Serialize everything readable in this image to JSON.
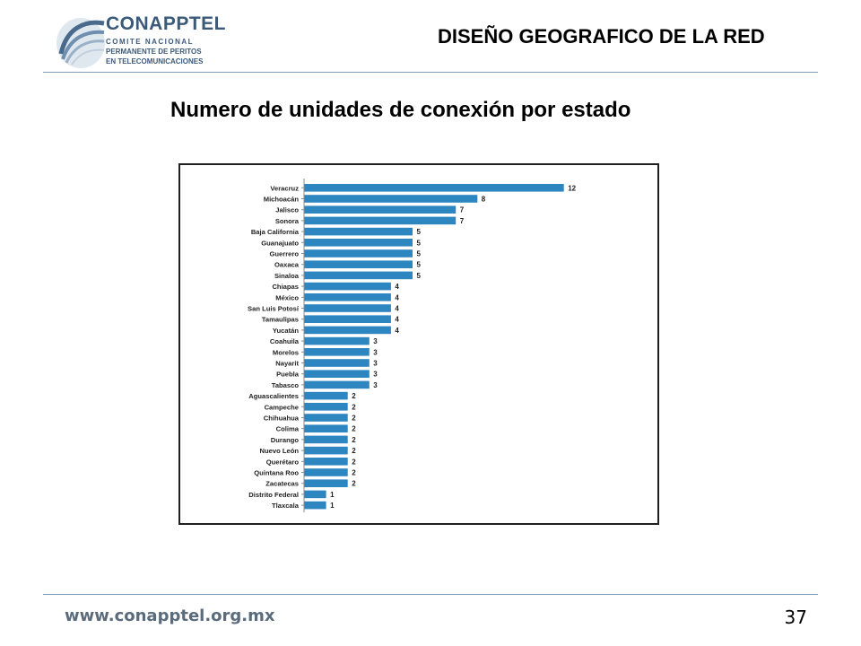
{
  "logo": {
    "name": "CONAPPTEL",
    "line1": "COMITE NACIONAL",
    "line2": "PERMANENTE DE PERITOS",
    "line3": "EN TELECOMUNICACIONES"
  },
  "header": {
    "title": "DISEÑO GEOGRAFICO DE LA RED"
  },
  "subtitle": "Numero de unidades de conexión por estado",
  "footer": {
    "url": "www.conapptel.org.mx",
    "page_number": "37"
  },
  "colors": {
    "bar": "#2e86c1",
    "rule": "#7f9db9"
  },
  "chart_data": {
    "type": "bar",
    "orientation": "horizontal",
    "categories": [
      "Veracruz",
      "Michoacán",
      "Jalisco",
      "Sonora",
      "Baja California",
      "Guanajuato",
      "Guerrero",
      "Oaxaca",
      "Sinaloa",
      "Chiapas",
      "México",
      "San Luis Potosí",
      "Tamaulipas",
      "Yucatán",
      "Coahuila",
      "Morelos",
      "Nayarit",
      "Puebla",
      "Tabasco",
      "Aguascalientes",
      "Campeche",
      "Chihuahua",
      "Colima",
      "Durango",
      "Nuevo León",
      "Querétaro",
      "Quintana Roo",
      "Zacatecas",
      "Distrito Federal",
      "Tlaxcala"
    ],
    "values": [
      12,
      8,
      7,
      7,
      5,
      5,
      5,
      5,
      5,
      4,
      4,
      4,
      4,
      4,
      3,
      3,
      3,
      3,
      3,
      2,
      2,
      2,
      2,
      2,
      2,
      2,
      2,
      2,
      1,
      1
    ],
    "data_labels": true,
    "grid": false
  }
}
